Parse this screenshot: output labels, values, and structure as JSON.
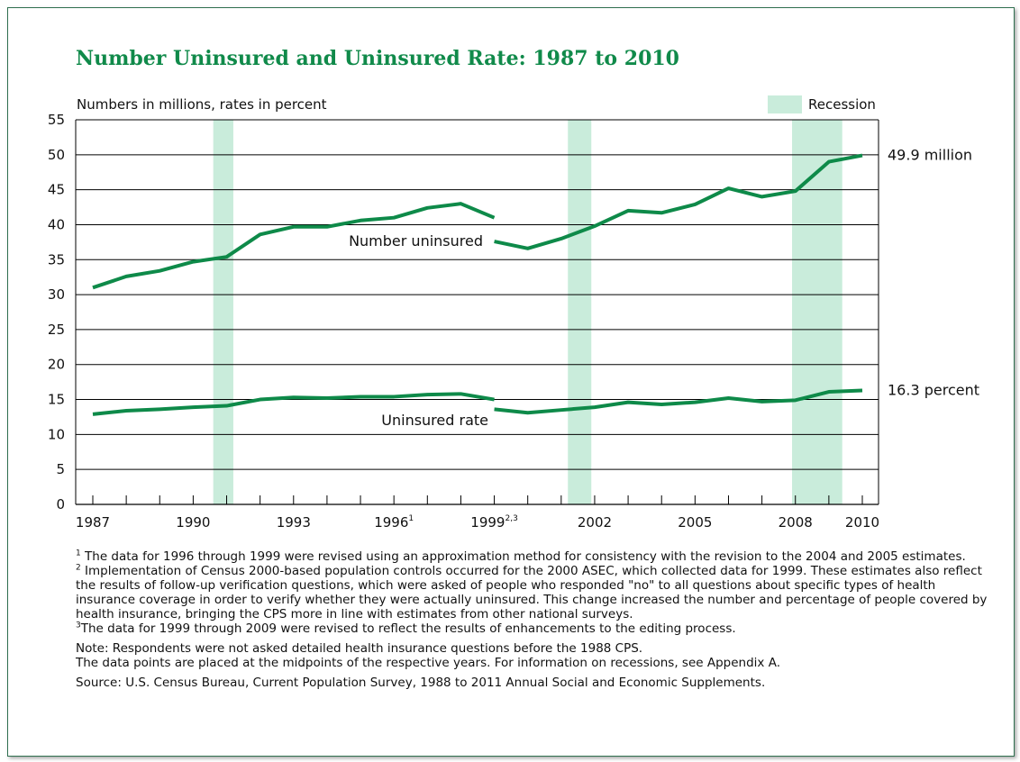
{
  "chart_data": {
    "type": "line",
    "title": "Number Uninsured and Uninsured Rate: 1987 to 2010",
    "ylabel": "Numbers in millions, rates in percent",
    "ylim": [
      0,
      55
    ],
    "yticks": [
      0,
      5,
      10,
      15,
      20,
      25,
      30,
      35,
      40,
      45,
      50,
      55
    ],
    "xlim": [
      1987,
      2010
    ],
    "xtick_labels": [
      {
        "year": 1987,
        "label": "1987",
        "sup": ""
      },
      {
        "year": 1990,
        "label": "1990",
        "sup": ""
      },
      {
        "year": 1993,
        "label": "1993",
        "sup": ""
      },
      {
        "year": 1996,
        "label": "1996",
        "sup": "1"
      },
      {
        "year": 1999,
        "label": "1999",
        "sup": "2,3"
      },
      {
        "year": 2002,
        "label": "2002",
        "sup": ""
      },
      {
        "year": 2005,
        "label": "2005",
        "sup": ""
      },
      {
        "year": 2008,
        "label": "2008",
        "sup": ""
      },
      {
        "year": 2010,
        "label": "2010",
        "sup": ""
      }
    ],
    "legend": {
      "label": "Recession",
      "placement": "top-right"
    },
    "recessions": [
      [
        1990.6,
        1991.2
      ],
      [
        2001.2,
        2001.9
      ],
      [
        2007.9,
        2009.4
      ]
    ],
    "series": [
      {
        "name": "Number uninsured",
        "end_label": "49.9 million",
        "segments": [
          {
            "x": [
              1987,
              1988,
              1989,
              1990,
              1991,
              1992,
              1993,
              1994,
              1995,
              1996,
              1997,
              1998,
              1999
            ],
            "y": [
              31.0,
              32.6,
              33.4,
              34.7,
              35.4,
              38.6,
              39.7,
              39.7,
              40.6,
              41.0,
              42.4,
              43.0,
              41.0
            ]
          },
          {
            "x": [
              1999,
              2000,
              2001,
              2002,
              2003,
              2004,
              2005,
              2006,
              2007,
              2008,
              2009,
              2010
            ],
            "y": [
              37.6,
              36.6,
              38.0,
              39.8,
              42.0,
              41.7,
              42.9,
              45.2,
              44.0,
              44.8,
              49.0,
              49.9
            ]
          }
        ]
      },
      {
        "name": "Uninsured rate",
        "end_label": "16.3 percent",
        "segments": [
          {
            "x": [
              1987,
              1988,
              1989,
              1990,
              1991,
              1992,
              1993,
              1994,
              1995,
              1996,
              1997,
              1998,
              1999
            ],
            "y": [
              12.9,
              13.4,
              13.6,
              13.9,
              14.1,
              15.0,
              15.3,
              15.2,
              15.4,
              15.4,
              15.7,
              15.8,
              15.0
            ]
          },
          {
            "x": [
              1999,
              2000,
              2001,
              2002,
              2003,
              2004,
              2005,
              2006,
              2007,
              2008,
              2009,
              2010
            ],
            "y": [
              13.6,
              13.1,
              13.5,
              13.9,
              14.6,
              14.3,
              14.6,
              15.2,
              14.7,
              14.9,
              16.1,
              16.3
            ]
          }
        ]
      }
    ],
    "colors": {
      "line": "#0e8a49",
      "recession": "#c9ecdb",
      "title": "#108a4a"
    }
  },
  "notes": {
    "n1_mark": "1",
    "n1": " The data for 1996 through 1999 were revised using an approximation method for consistency with the revision to the 2004 and 2005 estimates.",
    "n2_mark": "2",
    "n2": " Implementation of Census 2000-based population controls occurred for the 2000 ASEC, which collected data for 1999.  These estimates also reflect the results of follow-up verification questions, which were asked of people who responded \"no\" to all questions about specific types of health insurance coverage in order to verify whether they were actually uninsured. This change increased the number and percentage of people covered by health insurance, bringing the CPS more in line with estimates from other national surveys.",
    "n3_mark": "3",
    "n3": "The data for 1999 through 2009 were revised to reflect the results of enhancements to the editing process.",
    "note_a": "Note: Respondents were not asked detailed health insurance questions before the 1988 CPS.",
    "note_b": "The data points are placed at the midpoints of the respective years. For information on recessions, see Appendix A.",
    "source": "Source: U.S. Census Bureau, Current Population Survey, 1988 to 2011 Annual Social and Economic Supplements."
  }
}
